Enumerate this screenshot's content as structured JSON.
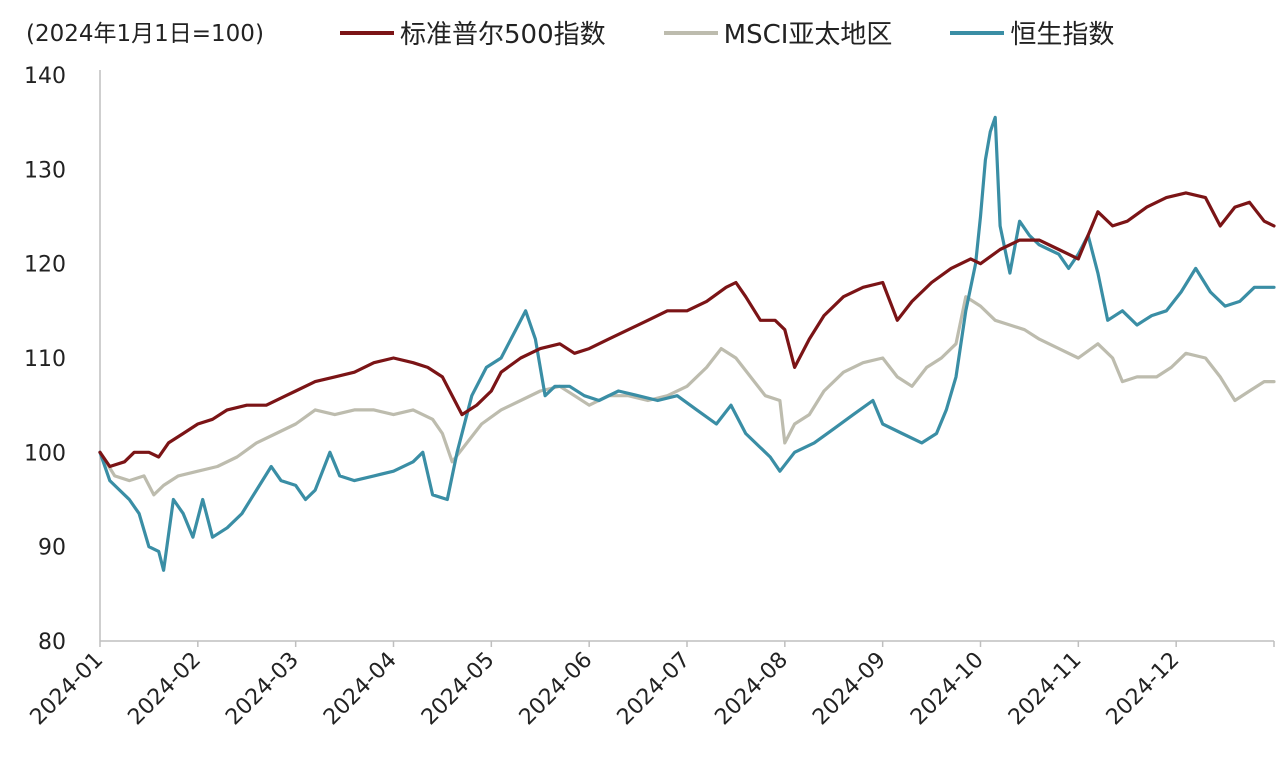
{
  "unit_label": "(2024年1月1日=100)",
  "legend": [
    {
      "label": "标准普尔500指数",
      "color": "#7b1416"
    },
    {
      "label": "MSCI亚太地区",
      "color": "#bdbcae"
    },
    {
      "label": "恒生指数",
      "color": "#3a8ea5"
    }
  ],
  "chart_data": {
    "type": "line",
    "ylim": [
      80,
      140
    ],
    "yticks": [
      "80",
      "90",
      "100",
      "110",
      "120",
      "130",
      "140"
    ],
    "xticks": [
      "2024-01",
      "2024-02",
      "2024-03",
      "2024-04",
      "2024-05",
      "2024-06",
      "2024-07",
      "2024-08",
      "2024-09",
      "2024-10",
      "2024-11",
      "2024-12"
    ],
    "x_range": [
      0,
      12
    ],
    "series": [
      {
        "name": "标准普尔500指数",
        "color": "#7b1416",
        "points": [
          [
            0.0,
            100
          ],
          [
            0.1,
            98.5
          ],
          [
            0.25,
            99
          ],
          [
            0.35,
            100
          ],
          [
            0.5,
            100
          ],
          [
            0.6,
            99.5
          ],
          [
            0.7,
            101
          ],
          [
            0.85,
            102
          ],
          [
            1.0,
            103
          ],
          [
            1.15,
            103.5
          ],
          [
            1.3,
            104.5
          ],
          [
            1.5,
            105
          ],
          [
            1.7,
            105
          ],
          [
            1.9,
            106
          ],
          [
            2.0,
            106.5
          ],
          [
            2.2,
            107.5
          ],
          [
            2.4,
            108
          ],
          [
            2.6,
            108.5
          ],
          [
            2.8,
            109.5
          ],
          [
            3.0,
            110
          ],
          [
            3.2,
            109.5
          ],
          [
            3.35,
            109
          ],
          [
            3.5,
            108
          ],
          [
            3.6,
            106
          ],
          [
            3.7,
            104
          ],
          [
            3.85,
            105
          ],
          [
            4.0,
            106.5
          ],
          [
            4.1,
            108.5
          ],
          [
            4.3,
            110
          ],
          [
            4.5,
            111
          ],
          [
            4.7,
            111.5
          ],
          [
            4.85,
            110.5
          ],
          [
            5.0,
            111
          ],
          [
            5.2,
            112
          ],
          [
            5.4,
            113
          ],
          [
            5.6,
            114
          ],
          [
            5.8,
            115
          ],
          [
            6.0,
            115
          ],
          [
            6.2,
            116
          ],
          [
            6.4,
            117.5
          ],
          [
            6.5,
            118
          ],
          [
            6.6,
            116.5
          ],
          [
            6.75,
            114
          ],
          [
            6.9,
            114
          ],
          [
            7.0,
            113
          ],
          [
            7.1,
            109
          ],
          [
            7.25,
            112
          ],
          [
            7.4,
            114.5
          ],
          [
            7.6,
            116.5
          ],
          [
            7.8,
            117.5
          ],
          [
            8.0,
            118
          ],
          [
            8.15,
            114
          ],
          [
            8.3,
            116
          ],
          [
            8.5,
            118
          ],
          [
            8.7,
            119.5
          ],
          [
            8.9,
            120.5
          ],
          [
            9.0,
            120
          ],
          [
            9.2,
            121.5
          ],
          [
            9.4,
            122.5
          ],
          [
            9.6,
            122.5
          ],
          [
            9.8,
            121.5
          ],
          [
            10.0,
            120.5
          ],
          [
            10.2,
            125.5
          ],
          [
            10.35,
            124
          ],
          [
            10.5,
            124.5
          ],
          [
            10.7,
            126
          ],
          [
            10.9,
            127
          ],
          [
            11.1,
            127.5
          ],
          [
            11.3,
            127
          ],
          [
            11.45,
            124
          ],
          [
            11.6,
            126
          ],
          [
            11.75,
            126.5
          ],
          [
            11.9,
            124.5
          ],
          [
            12.0,
            124
          ]
        ]
      },
      {
        "name": "MSCI亚太地区",
        "color": "#bdbcae",
        "points": [
          [
            0.0,
            100
          ],
          [
            0.15,
            97.5
          ],
          [
            0.3,
            97
          ],
          [
            0.45,
            97.5
          ],
          [
            0.55,
            95.5
          ],
          [
            0.65,
            96.5
          ],
          [
            0.8,
            97.5
          ],
          [
            1.0,
            98
          ],
          [
            1.2,
            98.5
          ],
          [
            1.4,
            99.5
          ],
          [
            1.6,
            101
          ],
          [
            1.8,
            102
          ],
          [
            2.0,
            103
          ],
          [
            2.2,
            104.5
          ],
          [
            2.4,
            104
          ],
          [
            2.6,
            104.5
          ],
          [
            2.8,
            104.5
          ],
          [
            3.0,
            104
          ],
          [
            3.2,
            104.5
          ],
          [
            3.4,
            103.5
          ],
          [
            3.5,
            102
          ],
          [
            3.6,
            99
          ],
          [
            3.75,
            101
          ],
          [
            3.9,
            103
          ],
          [
            4.1,
            104.5
          ],
          [
            4.3,
            105.5
          ],
          [
            4.5,
            106.5
          ],
          [
            4.7,
            107
          ],
          [
            4.85,
            106
          ],
          [
            5.0,
            105
          ],
          [
            5.2,
            106
          ],
          [
            5.4,
            106
          ],
          [
            5.6,
            105.5
          ],
          [
            5.8,
            106
          ],
          [
            6.0,
            107
          ],
          [
            6.2,
            109
          ],
          [
            6.35,
            111
          ],
          [
            6.5,
            110
          ],
          [
            6.65,
            108
          ],
          [
            6.8,
            106
          ],
          [
            6.95,
            105.5
          ],
          [
            7.0,
            101
          ],
          [
            7.1,
            103
          ],
          [
            7.25,
            104
          ],
          [
            7.4,
            106.5
          ],
          [
            7.6,
            108.5
          ],
          [
            7.8,
            109.5
          ],
          [
            8.0,
            110
          ],
          [
            8.15,
            108
          ],
          [
            8.3,
            107
          ],
          [
            8.45,
            109
          ],
          [
            8.6,
            110
          ],
          [
            8.75,
            111.5
          ],
          [
            8.85,
            116.5
          ],
          [
            9.0,
            115.5
          ],
          [
            9.15,
            114
          ],
          [
            9.3,
            113.5
          ],
          [
            9.45,
            113
          ],
          [
            9.6,
            112
          ],
          [
            9.8,
            111
          ],
          [
            10.0,
            110
          ],
          [
            10.2,
            111.5
          ],
          [
            10.35,
            110
          ],
          [
            10.45,
            107.5
          ],
          [
            10.6,
            108
          ],
          [
            10.8,
            108
          ],
          [
            10.95,
            109
          ],
          [
            11.1,
            110.5
          ],
          [
            11.3,
            110
          ],
          [
            11.45,
            108
          ],
          [
            11.6,
            105.5
          ],
          [
            11.75,
            106.5
          ],
          [
            11.9,
            107.5
          ],
          [
            12.0,
            107.5
          ]
        ]
      },
      {
        "name": "恒生指数",
        "color": "#3a8ea5",
        "points": [
          [
            0.0,
            100
          ],
          [
            0.1,
            97
          ],
          [
            0.2,
            96
          ],
          [
            0.3,
            95
          ],
          [
            0.4,
            93.5
          ],
          [
            0.5,
            90
          ],
          [
            0.6,
            89.5
          ],
          [
            0.65,
            87.5
          ],
          [
            0.75,
            95
          ],
          [
            0.85,
            93.5
          ],
          [
            0.95,
            91
          ],
          [
            1.05,
            95
          ],
          [
            1.15,
            91
          ],
          [
            1.3,
            92
          ],
          [
            1.45,
            93.5
          ],
          [
            1.6,
            96
          ],
          [
            1.75,
            98.5
          ],
          [
            1.85,
            97
          ],
          [
            2.0,
            96.5
          ],
          [
            2.1,
            95
          ],
          [
            2.2,
            96
          ],
          [
            2.35,
            100
          ],
          [
            2.45,
            97.5
          ],
          [
            2.6,
            97
          ],
          [
            2.8,
            97.5
          ],
          [
            3.0,
            98
          ],
          [
            3.2,
            99
          ],
          [
            3.3,
            100
          ],
          [
            3.4,
            95.5
          ],
          [
            3.55,
            95
          ],
          [
            3.65,
            100
          ],
          [
            3.8,
            106
          ],
          [
            3.95,
            109
          ],
          [
            4.1,
            110
          ],
          [
            4.25,
            113
          ],
          [
            4.35,
            115
          ],
          [
            4.45,
            112
          ],
          [
            4.55,
            106
          ],
          [
            4.65,
            107
          ],
          [
            4.8,
            107
          ],
          [
            4.95,
            106
          ],
          [
            5.1,
            105.5
          ],
          [
            5.3,
            106.5
          ],
          [
            5.5,
            106
          ],
          [
            5.7,
            105.5
          ],
          [
            5.9,
            106
          ],
          [
            6.1,
            104.5
          ],
          [
            6.3,
            103
          ],
          [
            6.45,
            105
          ],
          [
            6.6,
            102
          ],
          [
            6.75,
            100.5
          ],
          [
            6.85,
            99.5
          ],
          [
            6.95,
            98
          ],
          [
            7.1,
            100
          ],
          [
            7.3,
            101
          ],
          [
            7.5,
            102.5
          ],
          [
            7.7,
            104
          ],
          [
            7.9,
            105.5
          ],
          [
            8.0,
            103
          ],
          [
            8.2,
            102
          ],
          [
            8.4,
            101
          ],
          [
            8.55,
            102
          ],
          [
            8.65,
            104.5
          ],
          [
            8.75,
            108
          ],
          [
            8.85,
            115
          ],
          [
            8.95,
            120
          ],
          [
            9.0,
            125
          ],
          [
            9.05,
            131
          ],
          [
            9.1,
            134
          ],
          [
            9.15,
            135.5
          ],
          [
            9.2,
            124
          ],
          [
            9.3,
            119
          ],
          [
            9.4,
            124.5
          ],
          [
            9.5,
            123
          ],
          [
            9.6,
            122
          ],
          [
            9.7,
            121.5
          ],
          [
            9.8,
            121
          ],
          [
            9.9,
            119.5
          ],
          [
            10.0,
            121
          ],
          [
            10.1,
            123
          ],
          [
            10.2,
            119
          ],
          [
            10.3,
            114
          ],
          [
            10.45,
            115
          ],
          [
            10.6,
            113.5
          ],
          [
            10.75,
            114.5
          ],
          [
            10.9,
            115
          ],
          [
            11.05,
            117
          ],
          [
            11.2,
            119.5
          ],
          [
            11.35,
            117
          ],
          [
            11.5,
            115.5
          ],
          [
            11.65,
            116
          ],
          [
            11.8,
            117.5
          ],
          [
            11.95,
            117.5
          ],
          [
            12.0,
            117.5
          ]
        ]
      }
    ]
  }
}
